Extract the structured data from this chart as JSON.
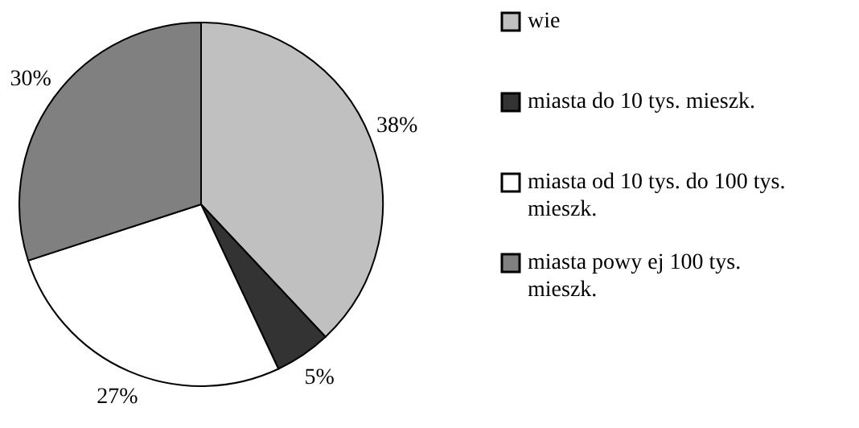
{
  "chart_data": {
    "type": "pie",
    "categories": [
      "wie",
      "miasta do 10 tys. mieszk.",
      "miasta od 10 tys. do 100 tys. mieszk.",
      "miasta powy ej 100 tys. mieszk."
    ],
    "values": [
      38,
      5,
      27,
      30
    ],
    "colors": [
      "#c0c0c0",
      "#333333",
      "#ffffff",
      "#808080"
    ],
    "value_labels": [
      "38%",
      "5%",
      "27%",
      "30%"
    ],
    "legend": "right"
  }
}
